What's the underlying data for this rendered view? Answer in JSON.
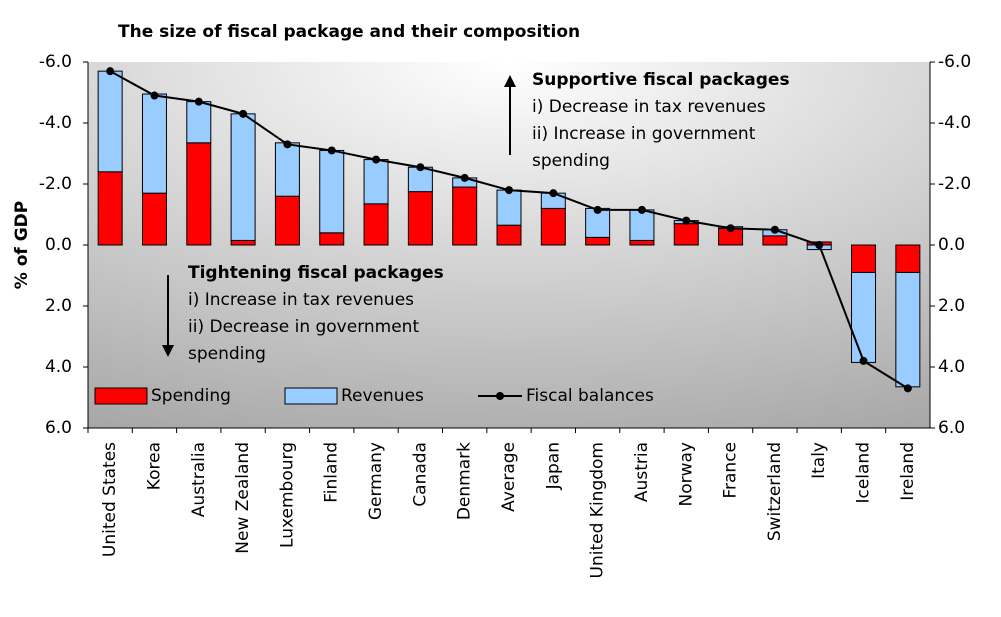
{
  "chart_data": {
    "type": "stacked_bar_line",
    "title": "The size of fiscal package and their composition",
    "ylabel": "% of GDP",
    "categories": [
      "United States",
      "Korea",
      "Australia",
      "New Zealand",
      "Luxembourg",
      "Finland",
      "Germany",
      "Canada",
      "Denmark",
      "Average",
      "Japan",
      "United Kingdom",
      "Austria",
      "Norway",
      "France",
      "Switzerland",
      "Italy",
      "Iceland",
      "Ireland"
    ],
    "series": [
      {
        "name": "Spending",
        "color": "#ff0000",
        "kind": "bar",
        "values": [
          -2.4,
          -1.7,
          -3.35,
          -0.15,
          -1.6,
          -0.4,
          -1.35,
          -1.75,
          -1.9,
          -0.65,
          -1.2,
          -0.25,
          -0.15,
          -0.7,
          -0.55,
          -0.3,
          -0.1,
          0.9,
          0.9
        ]
      },
      {
        "name": "Revenues",
        "color": "#99ccff",
        "kind": "bar",
        "values": [
          -3.3,
          -3.25,
          -1.35,
          -4.15,
          -1.75,
          -2.7,
          -1.45,
          -0.8,
          -0.3,
          -1.15,
          -0.5,
          -0.95,
          -1.0,
          -0.1,
          -0.05,
          -0.2,
          0.15,
          2.95,
          3.75
        ]
      },
      {
        "name": "Fiscal balances",
        "color": "#000000",
        "kind": "line",
        "values": [
          -5.7,
          -4.9,
          -4.7,
          -4.3,
          -3.3,
          -3.1,
          -2.8,
          -2.55,
          -2.2,
          -1.8,
          -1.7,
          -1.15,
          -1.15,
          -0.8,
          -0.55,
          -0.5,
          0.0,
          3.8,
          4.7
        ]
      }
    ],
    "ylim": [
      -6,
      6
    ],
    "yticks": [
      {
        "value": -6,
        "label": "-6.0"
      },
      {
        "value": -4,
        "label": "-4.0"
      },
      {
        "value": -2,
        "label": "-2.0"
      },
      {
        "value": 0,
        "label": "0.0"
      },
      {
        "value": 2,
        "label": "2.0"
      },
      {
        "value": 4,
        "label": "4.0"
      },
      {
        "value": 6,
        "label": "6.0"
      }
    ],
    "y2lim": [
      -6,
      6
    ],
    "y2ticks": [
      {
        "value": -6,
        "label": "-6.0"
      },
      {
        "value": -4,
        "label": "-4.0"
      },
      {
        "value": -2,
        "label": "-2.0"
      },
      {
        "value": 0,
        "label": "0.0"
      },
      {
        "value": 2,
        "label": "2.0"
      },
      {
        "value": 4,
        "label": "4.0"
      },
      {
        "value": 6,
        "label": "6.0"
      }
    ],
    "inverted": true,
    "legend": "bottom-left",
    "annotations": [
      {
        "title": "Supportive fiscal packages",
        "lines": [
          "i) Decrease in tax revenues",
          "ii) Increase in government",
          "spending"
        ]
      },
      {
        "title": "Tightening fiscal packages",
        "lines": [
          "i) Increase in tax revenues",
          "ii) Decrease in government",
          "spending"
        ]
      }
    ]
  }
}
